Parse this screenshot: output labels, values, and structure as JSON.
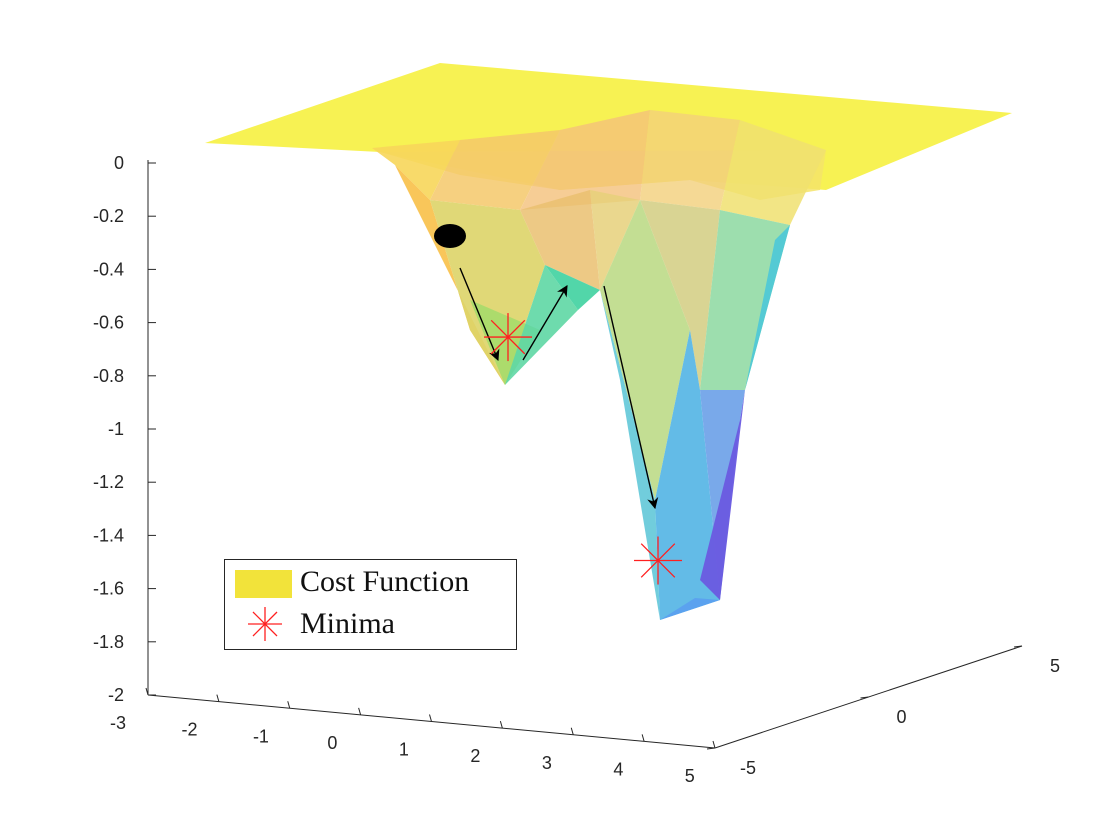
{
  "chart_data": {
    "type": "surface3d",
    "title": "",
    "z_ticks": [
      "0",
      "-0.2",
      "-0.4",
      "-0.6",
      "-0.8",
      "-1",
      "-1.2",
      "-1.4",
      "-1.6",
      "-1.8",
      "-2"
    ],
    "x_ticks": [
      "-3",
      "-2",
      "-1",
      "0",
      "1",
      "2",
      "3",
      "4",
      "5"
    ],
    "y_ticks": [
      "-5",
      "0",
      "5"
    ],
    "zlim": [
      -2,
      0
    ],
    "xlim": [
      -3,
      5
    ],
    "ylim": [
      -5,
      5
    ],
    "series": [
      {
        "name": "Cost Function",
        "kind": "surface",
        "description_values": {
          "plateau_z": 0
        }
      },
      {
        "name": "Minima",
        "kind": "marker",
        "points": [
          {
            "z": -0.88
          },
          {
            "z": -1.72
          }
        ]
      }
    ],
    "start_point_z": -0.28,
    "legend": {
      "entries": [
        "Cost Function",
        "Minima"
      ],
      "location": "bottom-left"
    },
    "colors": {
      "surface_high": "#f7f14a",
      "surface_mid": "#67d6a8",
      "surface_low": "#3bb8e0",
      "surface_deep": "#6a5ae0",
      "marker": "#ff2020",
      "arrow": "#000000",
      "ball": "#000000",
      "legend_swatch": "#f2e33a"
    }
  }
}
